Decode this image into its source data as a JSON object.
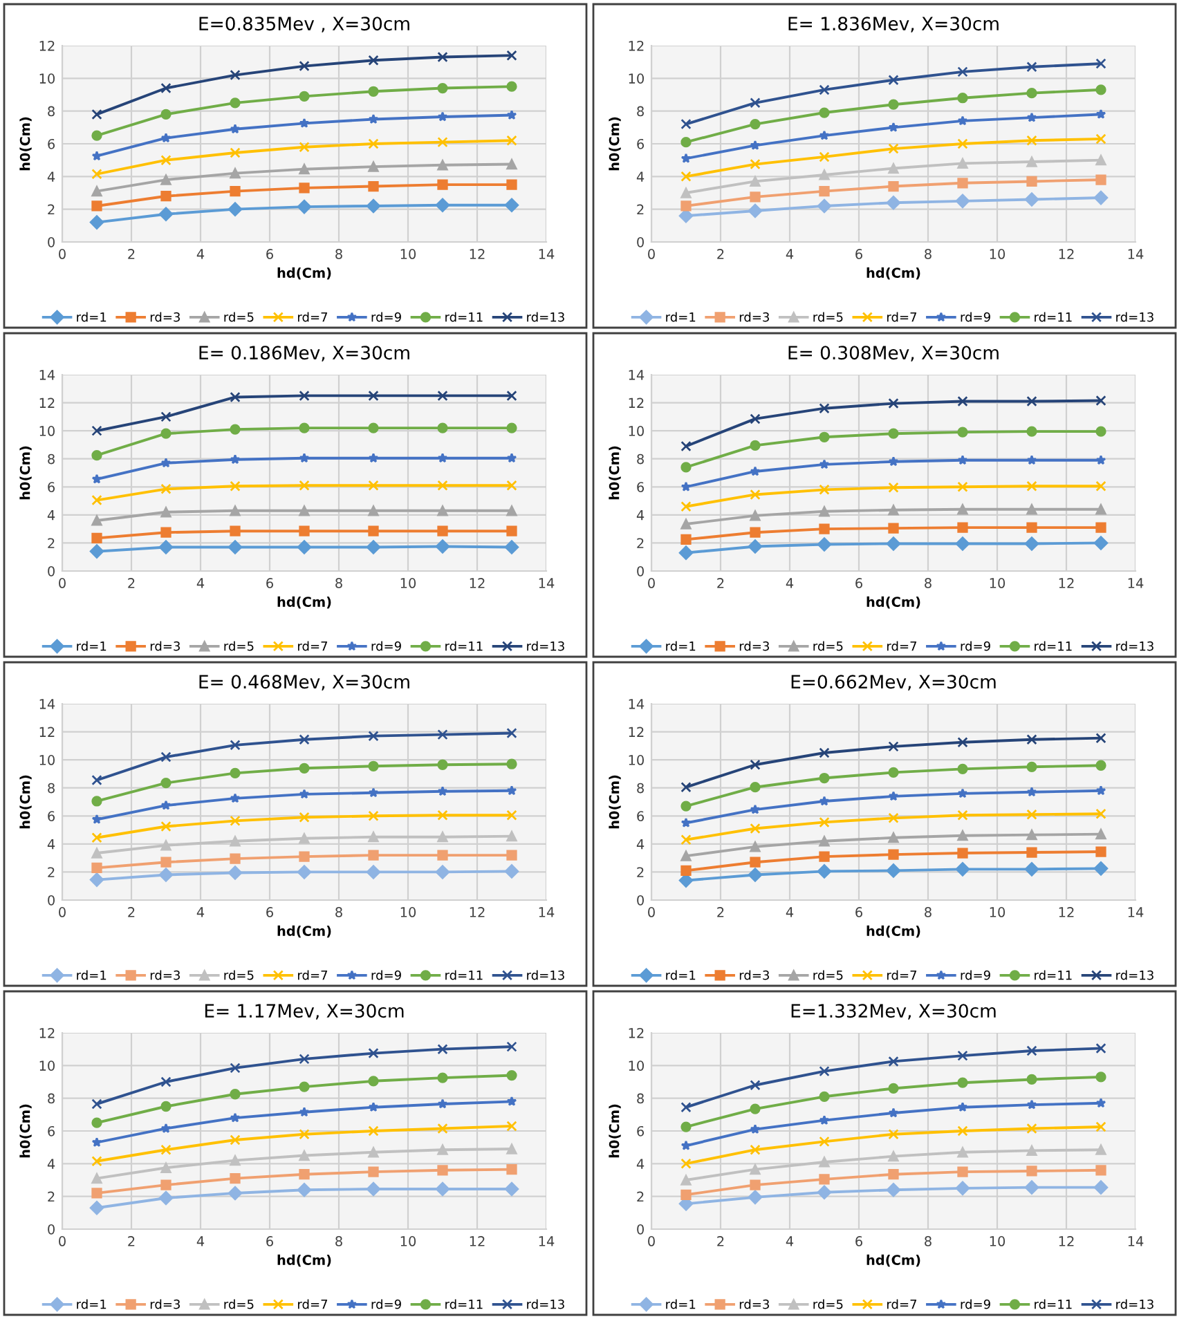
{
  "chart_data": [
    {
      "type": "line",
      "title": "E=0.835Mev , X=30cm",
      "xlabel": "hd(Cm)",
      "ylabel": "h0(Cm)",
      "xlim": [
        0,
        14
      ],
      "xticks": [
        0,
        2,
        4,
        6,
        8,
        10,
        12,
        14
      ],
      "ylim": [
        0,
        12
      ],
      "yticks": [
        0,
        2,
        4,
        6,
        8,
        10,
        12
      ],
      "grid": true,
      "legend": "bottom",
      "x": [
        1,
        3,
        5,
        7,
        9,
        11,
        13
      ],
      "series": [
        {
          "name": "rd=1",
          "color": "#5b9bd5",
          "marker": "diamond",
          "values": [
            1.2,
            1.7,
            2.0,
            2.15,
            2.2,
            2.25,
            2.25
          ]
        },
        {
          "name": "rd=3",
          "color": "#ed7d31",
          "marker": "square",
          "values": [
            2.2,
            2.8,
            3.1,
            3.3,
            3.4,
            3.5,
            3.5
          ]
        },
        {
          "name": "rd=5",
          "color": "#a5a5a5",
          "marker": "triangle",
          "values": [
            3.1,
            3.8,
            4.2,
            4.45,
            4.6,
            4.7,
            4.75
          ]
        },
        {
          "name": "rd=7",
          "color": "#ffc000",
          "marker": "cross",
          "values": [
            4.15,
            5.0,
            5.45,
            5.8,
            6.0,
            6.1,
            6.2
          ]
        },
        {
          "name": "rd=9",
          "color": "#4472c4",
          "marker": "star",
          "values": [
            5.25,
            6.35,
            6.9,
            7.25,
            7.5,
            7.65,
            7.75
          ]
        },
        {
          "name": "rd=11",
          "color": "#70ad47",
          "marker": "circle",
          "values": [
            6.5,
            7.8,
            8.5,
            8.9,
            9.2,
            9.4,
            9.5
          ]
        },
        {
          "name": "rd=13",
          "color": "#264478",
          "marker": "cross",
          "values": [
            7.8,
            9.4,
            10.2,
            10.75,
            11.1,
            11.3,
            11.4
          ]
        }
      ]
    },
    {
      "type": "line",
      "title": "E= 1.836Mev, X=30cm",
      "xlabel": "hd(Cm)",
      "ylabel": "h0(Cm)",
      "xlim": [
        0,
        14
      ],
      "xticks": [
        0,
        2,
        4,
        6,
        8,
        10,
        12,
        14
      ],
      "ylim": [
        0,
        12
      ],
      "yticks": [
        0,
        2,
        4,
        6,
        8,
        10,
        12
      ],
      "grid": true,
      "legend": "bottom",
      "x": [
        1,
        3,
        5,
        7,
        9,
        11,
        13
      ],
      "series": [
        {
          "name": "rd=1",
          "color": "#8fb4e3",
          "marker": "diamond",
          "values": [
            1.6,
            1.9,
            2.2,
            2.4,
            2.5,
            2.6,
            2.7
          ]
        },
        {
          "name": "rd=3",
          "color": "#f0a070",
          "marker": "square",
          "values": [
            2.2,
            2.75,
            3.1,
            3.4,
            3.6,
            3.7,
            3.8
          ]
        },
        {
          "name": "rd=5",
          "color": "#c0c0c0",
          "marker": "triangle",
          "values": [
            3.0,
            3.7,
            4.1,
            4.5,
            4.8,
            4.9,
            5.0
          ]
        },
        {
          "name": "rd=7",
          "color": "#ffc000",
          "marker": "cross",
          "values": [
            4.0,
            4.75,
            5.2,
            5.7,
            6.0,
            6.2,
            6.3
          ]
        },
        {
          "name": "rd=9",
          "color": "#4472c4",
          "marker": "star",
          "values": [
            5.1,
            5.9,
            6.5,
            7.0,
            7.4,
            7.6,
            7.8
          ]
        },
        {
          "name": "rd=11",
          "color": "#70ad47",
          "marker": "circle",
          "values": [
            6.1,
            7.2,
            7.9,
            8.4,
            8.8,
            9.1,
            9.3
          ]
        },
        {
          "name": "rd=13",
          "color": "#2f528f",
          "marker": "cross",
          "values": [
            7.2,
            8.5,
            9.3,
            9.9,
            10.4,
            10.7,
            10.9
          ]
        }
      ]
    },
    {
      "type": "line",
      "title": "E= 0.186Mev, X=30cm",
      "xlabel": "hd(Cm)",
      "ylabel": "h0(Cm)",
      "xlim": [
        0,
        14
      ],
      "xticks": [
        0,
        2,
        4,
        6,
        8,
        10,
        12,
        14
      ],
      "ylim": [
        0,
        14
      ],
      "yticks": [
        0,
        2,
        4,
        6,
        8,
        10,
        12,
        14
      ],
      "grid": true,
      "legend": "bottom",
      "x": [
        1,
        3,
        5,
        7,
        9,
        11,
        13
      ],
      "series": [
        {
          "name": "rd=1",
          "color": "#5b9bd5",
          "marker": "diamond",
          "values": [
            1.4,
            1.7,
            1.7,
            1.7,
            1.7,
            1.75,
            1.7
          ]
        },
        {
          "name": "rd=3",
          "color": "#ed7d31",
          "marker": "square",
          "values": [
            2.35,
            2.75,
            2.85,
            2.85,
            2.85,
            2.85,
            2.85
          ]
        },
        {
          "name": "rd=5",
          "color": "#a5a5a5",
          "marker": "triangle",
          "values": [
            3.6,
            4.2,
            4.3,
            4.3,
            4.3,
            4.3,
            4.3
          ]
        },
        {
          "name": "rd=7",
          "color": "#ffc000",
          "marker": "cross",
          "values": [
            5.05,
            5.85,
            6.05,
            6.1,
            6.1,
            6.1,
            6.1
          ]
        },
        {
          "name": "rd=9",
          "color": "#4472c4",
          "marker": "star",
          "values": [
            6.55,
            7.7,
            7.95,
            8.05,
            8.05,
            8.05,
            8.05
          ]
        },
        {
          "name": "rd=11",
          "color": "#70ad47",
          "marker": "circle",
          "values": [
            8.25,
            9.8,
            10.1,
            10.2,
            10.2,
            10.2,
            10.2
          ]
        },
        {
          "name": "rd=13",
          "color": "#264478",
          "marker": "cross",
          "values": [
            10.0,
            11.0,
            12.4,
            12.5,
            12.5,
            12.5,
            12.5
          ]
        }
      ]
    },
    {
      "type": "line",
      "title": "E= 0.308Mev, X=30cm",
      "xlabel": "hd(Cm)",
      "ylabel": "h0(Cm)",
      "xlim": [
        0,
        14
      ],
      "xticks": [
        0,
        2,
        4,
        6,
        8,
        10,
        12,
        14
      ],
      "ylim": [
        0,
        14
      ],
      "yticks": [
        0,
        2,
        4,
        6,
        8,
        10,
        12,
        14
      ],
      "grid": true,
      "legend": "bottom",
      "x": [
        1,
        3,
        5,
        7,
        9,
        11,
        13
      ],
      "series": [
        {
          "name": "rd=1",
          "color": "#5b9bd5",
          "marker": "diamond",
          "values": [
            1.3,
            1.75,
            1.9,
            1.95,
            1.95,
            1.95,
            2.0
          ]
        },
        {
          "name": "rd=3",
          "color": "#ed7d31",
          "marker": "square",
          "values": [
            2.25,
            2.75,
            3.0,
            3.05,
            3.1,
            3.1,
            3.1
          ]
        },
        {
          "name": "rd=5",
          "color": "#a5a5a5",
          "marker": "triangle",
          "values": [
            3.35,
            3.95,
            4.25,
            4.35,
            4.4,
            4.4,
            4.4
          ]
        },
        {
          "name": "rd=7",
          "color": "#ffc000",
          "marker": "cross",
          "values": [
            4.6,
            5.45,
            5.8,
            5.95,
            6.0,
            6.05,
            6.05
          ]
        },
        {
          "name": "rd=9",
          "color": "#4472c4",
          "marker": "star",
          "values": [
            6.0,
            7.1,
            7.6,
            7.8,
            7.9,
            7.9,
            7.9
          ]
        },
        {
          "name": "rd=11",
          "color": "#70ad47",
          "marker": "circle",
          "values": [
            7.4,
            8.95,
            9.55,
            9.8,
            9.9,
            9.95,
            9.95
          ]
        },
        {
          "name": "rd=13",
          "color": "#264478",
          "marker": "cross",
          "values": [
            8.9,
            10.85,
            11.6,
            11.95,
            12.1,
            12.1,
            12.15
          ]
        }
      ]
    },
    {
      "type": "line",
      "title": "E= 0.468Mev, X=30cm",
      "xlabel": "hd(Cm)",
      "ylabel": "h0(Cm)",
      "xlim": [
        0,
        14
      ],
      "xticks": [
        0,
        2,
        4,
        6,
        8,
        10,
        12,
        14
      ],
      "ylim": [
        0,
        14
      ],
      "yticks": [
        0,
        2,
        4,
        6,
        8,
        10,
        12,
        14
      ],
      "grid": true,
      "legend": "bottom",
      "x": [
        1,
        3,
        5,
        7,
        9,
        11,
        13
      ],
      "series": [
        {
          "name": "rd=1",
          "color": "#8fb4e3",
          "marker": "diamond",
          "values": [
            1.45,
            1.8,
            1.95,
            2.0,
            2.0,
            2.0,
            2.05
          ]
        },
        {
          "name": "rd=3",
          "color": "#f0a070",
          "marker": "square",
          "values": [
            2.3,
            2.7,
            2.95,
            3.1,
            3.2,
            3.2,
            3.2
          ]
        },
        {
          "name": "rd=5",
          "color": "#c0c0c0",
          "marker": "triangle",
          "values": [
            3.35,
            3.9,
            4.2,
            4.4,
            4.5,
            4.5,
            4.55
          ]
        },
        {
          "name": "rd=7",
          "color": "#ffc000",
          "marker": "cross",
          "values": [
            4.45,
            5.25,
            5.65,
            5.9,
            6.0,
            6.05,
            6.05
          ]
        },
        {
          "name": "rd=9",
          "color": "#4472c4",
          "marker": "star",
          "values": [
            5.75,
            6.75,
            7.25,
            7.55,
            7.65,
            7.75,
            7.8
          ]
        },
        {
          "name": "rd=11",
          "color": "#70ad47",
          "marker": "circle",
          "values": [
            7.05,
            8.35,
            9.05,
            9.4,
            9.55,
            9.65,
            9.7
          ]
        },
        {
          "name": "rd=13",
          "color": "#2f528f",
          "marker": "cross",
          "values": [
            8.55,
            10.2,
            11.05,
            11.45,
            11.7,
            11.8,
            11.9
          ]
        }
      ]
    },
    {
      "type": "line",
      "title": "E=0.662Mev, X=30cm",
      "xlabel": "hd(Cm)",
      "ylabel": "h0(Cm)",
      "xlim": [
        0,
        14
      ],
      "xticks": [
        0,
        2,
        4,
        6,
        8,
        10,
        12,
        14
      ],
      "ylim": [
        0,
        14
      ],
      "yticks": [
        0,
        2,
        4,
        6,
        8,
        10,
        12,
        14
      ],
      "grid": true,
      "legend": "bottom",
      "x": [
        1,
        3,
        5,
        7,
        9,
        11,
        13
      ],
      "series": [
        {
          "name": "rd=1",
          "color": "#5b9bd5",
          "marker": "diamond",
          "values": [
            1.4,
            1.8,
            2.05,
            2.1,
            2.2,
            2.2,
            2.25
          ]
        },
        {
          "name": "rd=3",
          "color": "#ed7d31",
          "marker": "square",
          "values": [
            2.1,
            2.7,
            3.1,
            3.25,
            3.35,
            3.4,
            3.45
          ]
        },
        {
          "name": "rd=5",
          "color": "#a5a5a5",
          "marker": "triangle",
          "values": [
            3.15,
            3.8,
            4.2,
            4.45,
            4.6,
            4.65,
            4.7
          ]
        },
        {
          "name": "rd=7",
          "color": "#ffc000",
          "marker": "cross",
          "values": [
            4.3,
            5.1,
            5.55,
            5.85,
            6.05,
            6.1,
            6.15
          ]
        },
        {
          "name": "rd=9",
          "color": "#4472c4",
          "marker": "star",
          "values": [
            5.5,
            6.45,
            7.05,
            7.4,
            7.6,
            7.7,
            7.8
          ]
        },
        {
          "name": "rd=11",
          "color": "#70ad47",
          "marker": "circle",
          "values": [
            6.7,
            8.05,
            8.7,
            9.1,
            9.35,
            9.5,
            9.6
          ]
        },
        {
          "name": "rd=13",
          "color": "#264478",
          "marker": "cross",
          "values": [
            8.05,
            9.65,
            10.5,
            10.95,
            11.25,
            11.45,
            11.55
          ]
        }
      ]
    },
    {
      "type": "line",
      "title": "E= 1.17Mev, X=30cm",
      "xlabel": "hd(Cm)",
      "ylabel": "h0(Cm)",
      "xlim": [
        0,
        14
      ],
      "xticks": [
        0,
        2,
        4,
        6,
        8,
        10,
        12,
        14
      ],
      "ylim": [
        0,
        12
      ],
      "yticks": [
        0,
        2,
        4,
        6,
        8,
        10,
        12
      ],
      "grid": true,
      "legend": "bottom",
      "x": [
        1,
        3,
        5,
        7,
        9,
        11,
        13
      ],
      "series": [
        {
          "name": "rd=1",
          "color": "#8fb4e3",
          "marker": "diamond",
          "values": [
            1.3,
            1.9,
            2.2,
            2.4,
            2.45,
            2.45,
            2.45
          ]
        },
        {
          "name": "rd=3",
          "color": "#f0a070",
          "marker": "square",
          "values": [
            2.2,
            2.7,
            3.1,
            3.35,
            3.5,
            3.6,
            3.65
          ]
        },
        {
          "name": "rd=5",
          "color": "#c0c0c0",
          "marker": "triangle",
          "values": [
            3.1,
            3.75,
            4.2,
            4.5,
            4.7,
            4.85,
            4.9
          ]
        },
        {
          "name": "rd=7",
          "color": "#ffc000",
          "marker": "cross",
          "values": [
            4.15,
            4.85,
            5.45,
            5.8,
            6.0,
            6.15,
            6.3
          ]
        },
        {
          "name": "rd=9",
          "color": "#4472c4",
          "marker": "star",
          "values": [
            5.3,
            6.15,
            6.8,
            7.15,
            7.45,
            7.65,
            7.8
          ]
        },
        {
          "name": "rd=11",
          "color": "#70ad47",
          "marker": "circle",
          "values": [
            6.5,
            7.5,
            8.25,
            8.7,
            9.05,
            9.25,
            9.4
          ]
        },
        {
          "name": "rd=13",
          "color": "#2f528f",
          "marker": "cross",
          "values": [
            7.65,
            9.0,
            9.85,
            10.4,
            10.75,
            11.0,
            11.15
          ]
        }
      ]
    },
    {
      "type": "line",
      "title": "E=1.332Mev, X=30cm",
      "xlabel": "hd(Cm)",
      "ylabel": "h0(Cm)",
      "xlim": [
        0,
        14
      ],
      "xticks": [
        0,
        2,
        4,
        6,
        8,
        10,
        12,
        14
      ],
      "ylim": [
        0,
        12
      ],
      "yticks": [
        0,
        2,
        4,
        6,
        8,
        10,
        12
      ],
      "grid": true,
      "legend": "bottom",
      "x": [
        1,
        3,
        5,
        7,
        9,
        11,
        13
      ],
      "series": [
        {
          "name": "rd=1",
          "color": "#8fb4e3",
          "marker": "diamond",
          "values": [
            1.55,
            1.95,
            2.25,
            2.4,
            2.5,
            2.55,
            2.55
          ]
        },
        {
          "name": "rd=3",
          "color": "#f0a070",
          "marker": "square",
          "values": [
            2.1,
            2.7,
            3.05,
            3.35,
            3.5,
            3.55,
            3.6
          ]
        },
        {
          "name": "rd=5",
          "color": "#c0c0c0",
          "marker": "triangle",
          "values": [
            3.0,
            3.65,
            4.1,
            4.45,
            4.7,
            4.8,
            4.85
          ]
        },
        {
          "name": "rd=7",
          "color": "#ffc000",
          "marker": "cross",
          "values": [
            4.0,
            4.85,
            5.35,
            5.8,
            6.0,
            6.15,
            6.25
          ]
        },
        {
          "name": "rd=9",
          "color": "#4472c4",
          "marker": "star",
          "values": [
            5.1,
            6.1,
            6.65,
            7.1,
            7.45,
            7.6,
            7.7
          ]
        },
        {
          "name": "rd=11",
          "color": "#70ad47",
          "marker": "circle",
          "values": [
            6.25,
            7.35,
            8.1,
            8.6,
            8.95,
            9.15,
            9.3
          ]
        },
        {
          "name": "rd=13",
          "color": "#2f528f",
          "marker": "cross",
          "values": [
            7.45,
            8.8,
            9.65,
            10.25,
            10.6,
            10.9,
            11.05
          ]
        }
      ]
    }
  ]
}
